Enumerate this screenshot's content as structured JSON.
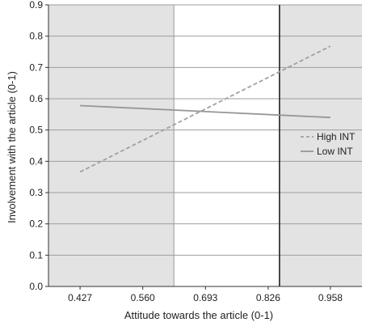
{
  "chart_data": {
    "type": "line",
    "xlabel": "Attitude towards the article (0-1)",
    "ylabel": "Involvement with the article (0-1)",
    "x_ticks": [
      0.427,
      0.56,
      0.693,
      0.826,
      0.958
    ],
    "x_tick_labels": [
      "0.427",
      "0.560",
      "0.693",
      "0.826",
      "0.958"
    ],
    "xlim": [
      0.36,
      1.025
    ],
    "ylim": [
      0,
      0.9
    ],
    "y_ticks": [
      0,
      0.1,
      0.2,
      0.3,
      0.4,
      0.5,
      0.6,
      0.7,
      0.8,
      0.9
    ],
    "y_tick_labels": [
      "0.0",
      "0.1",
      "0.2",
      "0.3",
      "0.4",
      "0.5",
      "0.6",
      "0.7",
      "0.8",
      "0.9"
    ],
    "grid": "horizontal",
    "legend_position": "right",
    "series": [
      {
        "name": "High INT",
        "style": "dashed",
        "color": "#a0a0a0",
        "x": [
          0.427,
          0.958
        ],
        "y": [
          0.366,
          0.768
        ]
      },
      {
        "name": "Low INT",
        "style": "solid",
        "color": "#969696",
        "x": [
          0.427,
          0.958
        ],
        "y": [
          0.578,
          0.54
        ]
      }
    ],
    "regions": [
      {
        "x_start": 0.36,
        "x_end": 0.626,
        "fill": "#e3e3e3"
      },
      {
        "x_start": 0.626,
        "x_end": 0.85,
        "fill": "#ffffff"
      },
      {
        "x_start": 0.85,
        "x_end": 1.025,
        "fill": "#e3e3e3"
      }
    ],
    "reference_lines": [
      {
        "x": 0.626,
        "color": "#9a9a9a"
      },
      {
        "x": 0.85,
        "color": "#222222"
      }
    ]
  }
}
